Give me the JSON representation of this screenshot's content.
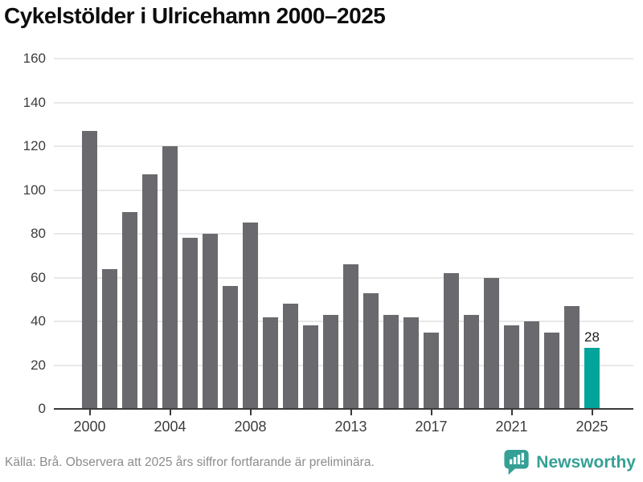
{
  "title": "Cykelstölder i Ulricehamn 2000–2025",
  "footer": {
    "source_note": "Källa: Brå. Observera att 2025 års siffror fortfarande är preliminära.",
    "logo_text": "Newsworthy"
  },
  "icons": {
    "logo_icon": "newsworthy-speech-bubble-bar-chart-icon"
  },
  "colors": {
    "bar": "#6a6a6e",
    "highlight": "#00a49a",
    "grid": "#e8e8e8",
    "axis": "#3a3a3a",
    "tick_label": "#3d3d3d",
    "title": "#0d0d0d",
    "footer_text": "#8c8c8c",
    "logo": "#35a095"
  },
  "chart_data": {
    "type": "bar",
    "title": "Cykelstölder i Ulricehamn 2000–2025",
    "xlabel": "",
    "ylabel": "",
    "x": [
      2000,
      2001,
      2002,
      2003,
      2004,
      2005,
      2006,
      2007,
      2008,
      2009,
      2010,
      2011,
      2012,
      2013,
      2014,
      2015,
      2016,
      2017,
      2018,
      2019,
      2020,
      2021,
      2022,
      2023,
      2024,
      2025
    ],
    "values": [
      127,
      64,
      90,
      107,
      120,
      78,
      80,
      56,
      85,
      42,
      48,
      38,
      43,
      66,
      53,
      43,
      42,
      35,
      62,
      43,
      60,
      38,
      40,
      35,
      47,
      28
    ],
    "highlight_index": 25,
    "highlight_label": "28",
    "highlight_color": "#00a49a",
    "bar_color": "#6a6a6e",
    "ylim": [
      0,
      160
    ],
    "yticks": [
      0,
      20,
      40,
      60,
      80,
      100,
      120,
      140,
      160
    ],
    "xtick_labels": [
      "2000",
      "2004",
      "2008",
      "2013",
      "2017",
      "2021",
      "2025"
    ],
    "grid": true,
    "legend_position": "none"
  }
}
